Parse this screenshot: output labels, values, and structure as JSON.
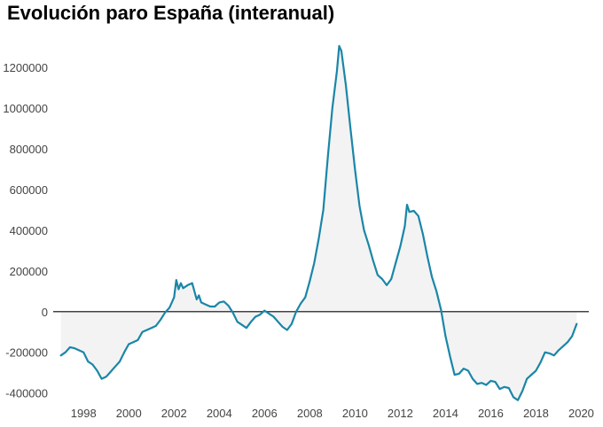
{
  "title": "Evolución paro España (interanual)",
  "colors": {
    "line": "#1a86a8",
    "area": "#f3f3f3",
    "zero_line": "#444444",
    "text": "#444444"
  },
  "chart_data": {
    "type": "area",
    "title": "Evolución paro España (interanual)",
    "xlabel": "",
    "ylabel": "",
    "xlim": [
      1996.6,
      2020.1
    ],
    "ylim": [
      -410000,
      1300000
    ],
    "grid": false,
    "legend": "none",
    "x_ticks": [
      "1998",
      "2000",
      "2002",
      "2004",
      "2006",
      "2008",
      "2010",
      "2012",
      "2014",
      "2016",
      "2018",
      "2020"
    ],
    "y_ticks": [
      "-400000",
      "-200000",
      "0",
      "200000",
      "400000",
      "600000",
      "800000",
      "1000000",
      "1200000"
    ],
    "series": [
      {
        "x": [
          1997.0,
          1997.2,
          1997.4,
          1997.6,
          1997.8,
          1998.0,
          1998.2,
          1998.4,
          1998.6,
          1998.8,
          1999.0,
          1999.2,
          1999.4,
          1999.6,
          1999.8,
          2000.0,
          2000.2,
          2000.4,
          2000.6,
          2000.8,
          2001.0,
          2001.2,
          2001.4,
          2001.6,
          2001.8,
          2002.0,
          2002.1,
          2002.2,
          2002.3,
          2002.4,
          2002.6,
          2002.8,
          2003.0,
          2003.1,
          2003.2,
          2003.4,
          2003.6,
          2003.8,
          2004.0,
          2004.2,
          2004.4,
          2004.6,
          2004.8,
          2005.0,
          2005.2,
          2005.4,
          2005.6,
          2005.8,
          2006.0,
          2006.2,
          2006.4,
          2006.6,
          2006.8,
          2007.0,
          2007.2,
          2007.4,
          2007.6,
          2007.8,
          2008.0,
          2008.2,
          2008.4,
          2008.6,
          2008.8,
          2009.0,
          2009.2,
          2009.3,
          2009.4,
          2009.6,
          2009.8,
          2010.0,
          2010.2,
          2010.4,
          2010.6,
          2010.8,
          2011.0,
          2011.2,
          2011.4,
          2011.6,
          2011.8,
          2012.0,
          2012.2,
          2012.3,
          2012.4,
          2012.6,
          2012.8,
          2013.0,
          2013.2,
          2013.4,
          2013.6,
          2013.8,
          2014.0,
          2014.2,
          2014.4,
          2014.6,
          2014.8,
          2015.0,
          2015.2,
          2015.4,
          2015.6,
          2015.8,
          2016.0,
          2016.2,
          2016.4,
          2016.6,
          2016.8,
          2017.0,
          2017.2,
          2017.4,
          2017.6,
          2017.8,
          2018.0,
          2018.2,
          2018.4,
          2018.6,
          2018.8,
          2019.0,
          2019.2,
          2019.4,
          2019.6,
          2019.8
        ],
        "values": [
          -215000,
          -200000,
          -175000,
          -180000,
          -190000,
          -200000,
          -245000,
          -260000,
          -290000,
          -330000,
          -320000,
          -295000,
          -270000,
          -245000,
          -200000,
          -160000,
          -150000,
          -140000,
          -100000,
          -90000,
          -80000,
          -70000,
          -40000,
          -5000,
          20000,
          70000,
          155000,
          110000,
          140000,
          115000,
          130000,
          140000,
          60000,
          80000,
          45000,
          35000,
          25000,
          25000,
          45000,
          50000,
          30000,
          -5000,
          -50000,
          -65000,
          -80000,
          -50000,
          -25000,
          -15000,
          5000,
          -10000,
          -25000,
          -50000,
          -75000,
          -90000,
          -60000,
          0,
          40000,
          70000,
          150000,
          240000,
          360000,
          500000,
          760000,
          1000000,
          1180000,
          1305000,
          1280000,
          1110000,
          900000,
          700000,
          520000,
          400000,
          330000,
          250000,
          180000,
          160000,
          130000,
          160000,
          240000,
          320000,
          420000,
          525000,
          490000,
          495000,
          470000,
          380000,
          270000,
          170000,
          100000,
          10000,
          -120000,
          -220000,
          -310000,
          -305000,
          -280000,
          -290000,
          -330000,
          -355000,
          -350000,
          -360000,
          -340000,
          -345000,
          -380000,
          -370000,
          -375000,
          -420000,
          -435000,
          -390000,
          -330000,
          -310000,
          -290000,
          -250000,
          -200000,
          -205000,
          -215000,
          -190000,
          -170000,
          -150000,
          -120000,
          -60000
        ]
      }
    ]
  }
}
